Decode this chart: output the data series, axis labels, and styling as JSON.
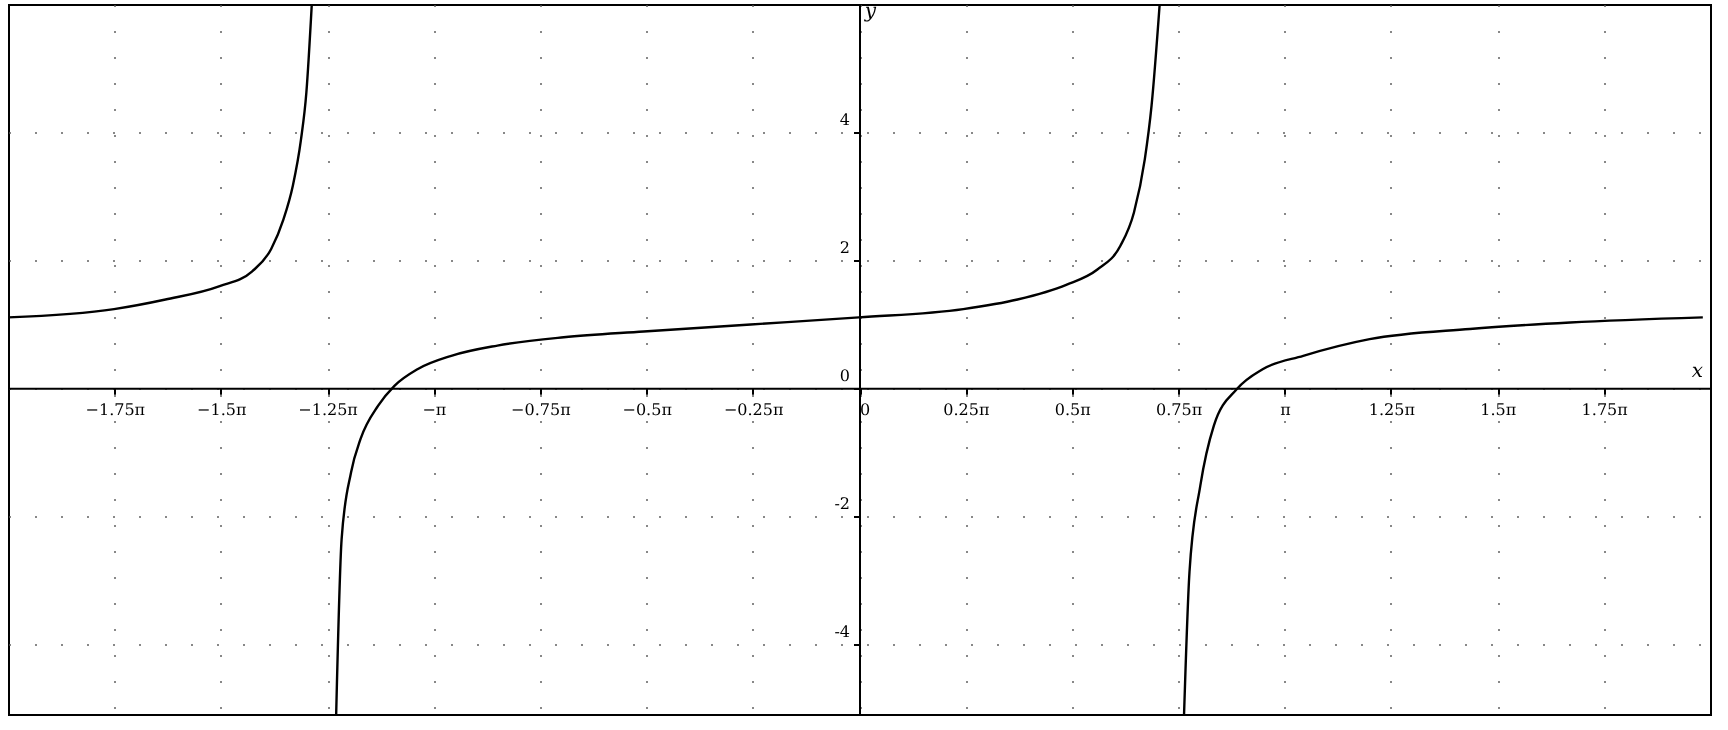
{
  "chart_data": {
    "type": "line",
    "xlabel": "x",
    "ylabel": "y",
    "xlim": [
      -6.283,
      6.283
    ],
    "ylim": [
      -5.1,
      6.0
    ],
    "xticks": [
      {
        "value": -5.498,
        "label": "−1.75π"
      },
      {
        "value": -4.712,
        "label": "−1.5π"
      },
      {
        "value": -3.927,
        "label": "−1.25π"
      },
      {
        "value": -3.142,
        "label": "−π"
      },
      {
        "value": -2.356,
        "label": "−0.75π"
      },
      {
        "value": -1.571,
        "label": "−0.5π"
      },
      {
        "value": -0.785,
        "label": "−0.25π"
      },
      0,
      {
        "value": 0.785,
        "label": "0.25π"
      },
      {
        "value": 1.571,
        "label": "0.5π"
      },
      {
        "value": 2.356,
        "label": "0.75π"
      },
      {
        "value": 3.142,
        "label": "π"
      },
      {
        "value": 3.927,
        "label": "1.25π"
      },
      {
        "value": 4.712,
        "label": "1.5π"
      },
      {
        "value": 5.498,
        "label": "1.75π"
      }
    ],
    "yticks": [
      -4,
      -2,
      0,
      2,
      4
    ],
    "grid": true,
    "marker": "none",
    "line_style": "solid",
    "series": [
      {
        "color": "#000000",
        "x": [
          -6.28,
          -5.5,
          -5.12,
          -4.72,
          -4.48,
          -4.34,
          -4.25,
          -4.18,
          -4.12,
          -4.08,
          -4.04
        ],
        "values": [
          1.1,
          1.23,
          1.38,
          1.59,
          1.82,
          2.17,
          2.63,
          3.16,
          3.88,
          4.62,
          6.0
        ]
      },
      {
        "color": "#000000",
        "x": [
          -3.86,
          -3.82,
          -3.75,
          -3.68,
          -3.55,
          -3.43,
          -3.26,
          -3.01,
          -2.67,
          -2.18,
          -1.59,
          -0.8,
          0,
          0.77,
          1.17,
          1.53,
          1.76,
          1.93,
          2.03,
          2.11,
          2.16,
          2.22
        ],
        "values": [
          -5.1,
          -2.37,
          -1.32,
          -0.8,
          -0.28,
          0.03,
          0.29,
          0.5,
          0.66,
          0.79,
          0.88,
          0.99,
          1.1,
          1.23,
          1.38,
          1.61,
          1.85,
          2.22,
          2.74,
          3.57,
          4.41,
          6.0
        ]
      },
      {
        "color": "#000000",
        "x": [
          2.4,
          2.44,
          2.52,
          2.62,
          2.79,
          2.98,
          3.28,
          3.77,
          4.51,
          5.25,
          6.23
        ],
        "values": [
          -5.1,
          -2.88,
          -1.53,
          -0.59,
          -0.02,
          0.29,
          0.5,
          0.76,
          0.92,
          1.02,
          1.1
        ]
      }
    ]
  }
}
